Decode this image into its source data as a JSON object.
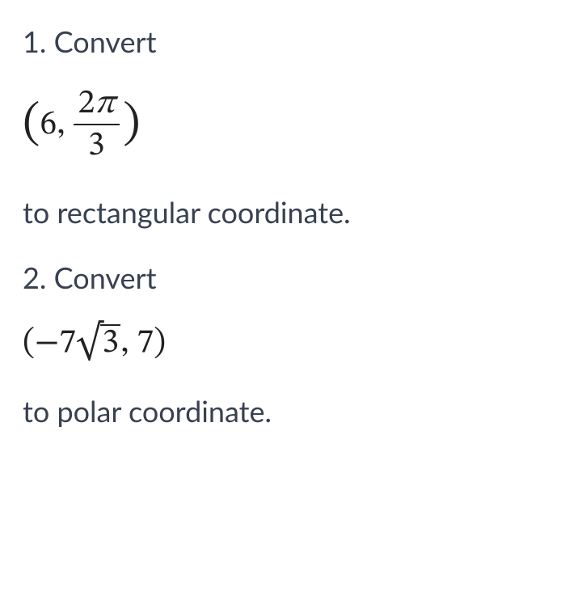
{
  "text_color": "#374151",
  "math_color": "#222222",
  "background_color": "#ffffff",
  "body_fontsize": 36,
  "math_fontsize": 42,
  "q1": {
    "label": "1. Convert",
    "coord": {
      "open": "(",
      "r_value": "6,",
      "frac_num": "2",
      "frac_pi": "π",
      "frac_den": "3",
      "close": ")"
    },
    "instruction": "to rectangular coordinate."
  },
  "q2": {
    "label": "2. Convert",
    "coord": {
      "open": "(",
      "minus": "−",
      "x_coef": "7",
      "sqrt_sym": "√",
      "sqrt_arg": "3",
      "comma": ",",
      "space": " ",
      "y_value": "7",
      "close": ")"
    },
    "instruction": "to polar coordinate."
  }
}
